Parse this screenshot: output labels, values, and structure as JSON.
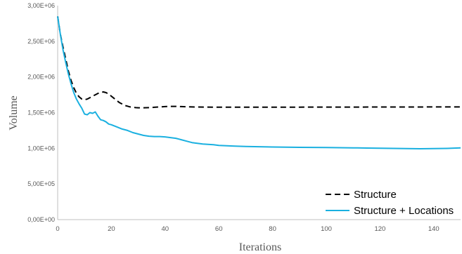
{
  "chart_data": {
    "type": "line",
    "xlabel": "Iterations",
    "ylabel": "Volume",
    "xlim": [
      0,
      150
    ],
    "ylim": [
      0,
      3000000
    ],
    "x_ticks": [
      0,
      20,
      40,
      60,
      80,
      100,
      120,
      140
    ],
    "x_tick_labels": [
      "0",
      "20",
      "40",
      "60",
      "80",
      "100",
      "120",
      "140"
    ],
    "y_ticks": [
      0,
      500000,
      1000000,
      1500000,
      2000000,
      2500000,
      3000000
    ],
    "y_tick_labels": [
      "0,00E+00",
      "5,00E+05",
      "1,00E+06",
      "1,50E+06",
      "2,00E+06",
      "2,50E+06",
      "3,00E+06"
    ],
    "grid": false,
    "legend_position": "bottom-right",
    "series": [
      {
        "name": "Structure",
        "color": "#000000",
        "dash": "dashed",
        "x": [
          0,
          1,
          2,
          3,
          4,
          5,
          6,
          7,
          8,
          9,
          10,
          11,
          12,
          13,
          14,
          15,
          16,
          17,
          18,
          19,
          20,
          21,
          22,
          23,
          24,
          25,
          26,
          27,
          28,
          29,
          30,
          32,
          34,
          36,
          38,
          40,
          42,
          44,
          46,
          48,
          50,
          55,
          60,
          65,
          70,
          80,
          90,
          100,
          110,
          120,
          130,
          140,
          150
        ],
        "y": [
          2850000,
          2600000,
          2420000,
          2250000,
          2080000,
          1950000,
          1850000,
          1770000,
          1720000,
          1690000,
          1680000,
          1690000,
          1710000,
          1730000,
          1750000,
          1770000,
          1780000,
          1790000,
          1780000,
          1760000,
          1730000,
          1700000,
          1670000,
          1640000,
          1620000,
          1600000,
          1590000,
          1580000,
          1575000,
          1570000,
          1568000,
          1568000,
          1570000,
          1575000,
          1580000,
          1585000,
          1588000,
          1588000,
          1585000,
          1582000,
          1580000,
          1578000,
          1576000,
          1576000,
          1576000,
          1577000,
          1577000,
          1578000,
          1578000,
          1579000,
          1579000,
          1580000,
          1580000
        ]
      },
      {
        "name": "Structure + Locations",
        "color": "#1ab0e0",
        "dash": "solid",
        "x": [
          0,
          1,
          2,
          3,
          4,
          5,
          6,
          7,
          8,
          9,
          10,
          11,
          12,
          13,
          14,
          15,
          16,
          17,
          18,
          19,
          20,
          22,
          24,
          26,
          28,
          30,
          32,
          34,
          36,
          38,
          40,
          42,
          44,
          46,
          48,
          50,
          52,
          54,
          56,
          58,
          60,
          63,
          66,
          70,
          75,
          80,
          85,
          90,
          95,
          100,
          105,
          110,
          115,
          120,
          125,
          130,
          135,
          140,
          145,
          150
        ],
        "y": [
          2850000,
          2600000,
          2380000,
          2200000,
          2040000,
          1900000,
          1780000,
          1690000,
          1620000,
          1560000,
          1480000,
          1470000,
          1500000,
          1490000,
          1510000,
          1450000,
          1400000,
          1390000,
          1370000,
          1340000,
          1330000,
          1300000,
          1270000,
          1250000,
          1220000,
          1200000,
          1180000,
          1170000,
          1165000,
          1165000,
          1160000,
          1150000,
          1140000,
          1120000,
          1100000,
          1080000,
          1070000,
          1060000,
          1055000,
          1050000,
          1040000,
          1035000,
          1030000,
          1025000,
          1022000,
          1018000,
          1015000,
          1013000,
          1012000,
          1010000,
          1008000,
          1006000,
          1003000,
          1000000,
          998000,
          995000,
          993000,
          995000,
          998000,
          1005000
        ]
      }
    ]
  }
}
